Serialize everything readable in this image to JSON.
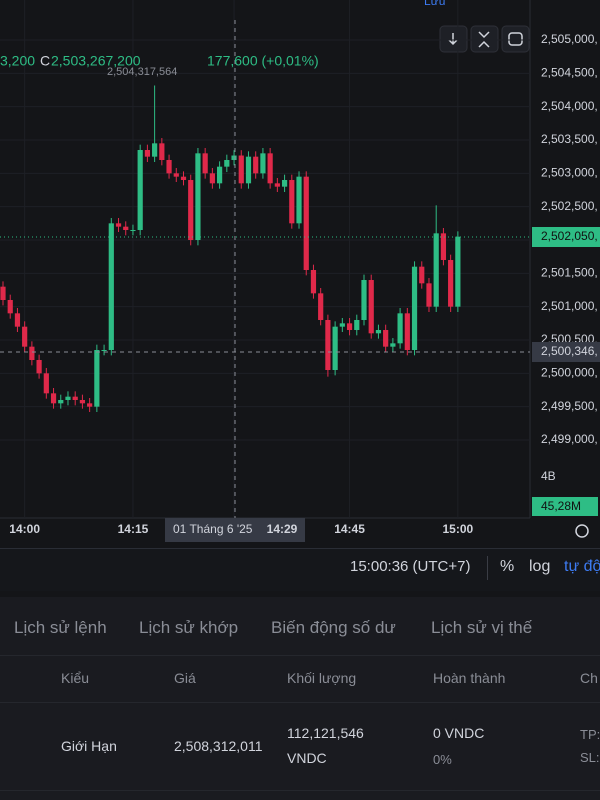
{
  "top_bar": {
    "save": "Lưu"
  },
  "chart_data": {
    "type": "candlestick",
    "categories": [
      null,
      null,
      null,
      "14:00",
      null,
      null,
      null,
      null,
      null,
      null,
      null,
      null,
      null,
      null,
      null,
      null,
      null,
      null,
      "14:15",
      null,
      null,
      null,
      null,
      null,
      null,
      null,
      null,
      null,
      null,
      null,
      null,
      null,
      "14:29",
      null,
      null,
      null,
      null,
      null,
      null,
      null,
      null,
      null,
      null,
      null,
      null,
      null,
      null,
      null,
      "14:45",
      null,
      null,
      null,
      null,
      null,
      null,
      null,
      null,
      null,
      null,
      null,
      null,
      null,
      null,
      "15:00"
    ],
    "open": [
      2501300000,
      2501100000,
      2500900000,
      2500700000,
      2500400000,
      2500200000,
      2500000000,
      2499700000,
      2499550000,
      2499600000,
      2499650000,
      2499600000,
      2499550000,
      2499500000,
      2500350000,
      2500350000,
      2502250000,
      2502200000,
      2502150000,
      2502150000,
      2503350000,
      2503250000,
      2503450000,
      2503200000,
      2503000000,
      2502950000,
      2502900000,
      2502000000,
      2503300000,
      2503000000,
      2502850000,
      2503100000,
      2503200000,
      2503267200,
      2502850000,
      2503250000,
      2503000000,
      2503300000,
      2502850000,
      2502800000,
      2502900000,
      2502250000,
      2502950000,
      2501550000,
      2501200000,
      2500800000,
      2500050000,
      2500700000,
      2500750000,
      2500650000,
      2500800000,
      2501400000,
      2500600000,
      2500650000,
      2500400000,
      2500450000,
      2500900000,
      2500350000,
      2501600000,
      2501350000,
      2501000000,
      2502100000,
      2501700000,
      2501000000
    ],
    "high": [
      2501380000,
      2501180000,
      2500980000,
      2500780000,
      2500480000,
      2500280000,
      2500080000,
      2499780000,
      2499680000,
      2499730000,
      2499730000,
      2499680000,
      2499630000,
      2500430000,
      2500430000,
      2502330000,
      2502330000,
      2502280000,
      2502230000,
      2503430000,
      2503430000,
      2504317564,
      2503530000,
      2503280000,
      2503080000,
      2503030000,
      2502980000,
      2503380000,
      2503380000,
      2503080000,
      2503180000,
      2503280000,
      2503347200,
      2503347200,
      2503330000,
      2503330000,
      2503380000,
      2503380000,
      2502930000,
      2502980000,
      2502980000,
      2503030000,
      2503030000,
      2501630000,
      2501280000,
      2500880000,
      2500780000,
      2500830000,
      2500830000,
      2500880000,
      2501480000,
      2501480000,
      2500730000,
      2500730000,
      2500530000,
      2500980000,
      2500980000,
      2501680000,
      2501680000,
      2501430000,
      2502520000,
      2502180000,
      2501780000,
      2502130000
    ],
    "low": [
      2501020000,
      2500820000,
      2500620000,
      2500320000,
      2500120000,
      2499920000,
      2499620000,
      2499470000,
      2499470000,
      2499520000,
      2499520000,
      2499470000,
      2499420000,
      2499420000,
      2500270000,
      2500270000,
      2502120000,
      2502070000,
      2502070000,
      2502070000,
      2503170000,
      2503170000,
      2503120000,
      2502920000,
      2502870000,
      2502820000,
      2501920000,
      2501920000,
      2502920000,
      2502770000,
      2502770000,
      2503020000,
      2503120000,
      2502770000,
      2502770000,
      2502920000,
      2502920000,
      2502770000,
      2502720000,
      2502720000,
      2502170000,
      2502170000,
      2501470000,
      2501120000,
      2500720000,
      2499950000,
      2499970000,
      2500620000,
      2500570000,
      2500570000,
      2500720000,
      2500520000,
      2500520000,
      2500320000,
      2500320000,
      2500370000,
      2500270000,
      2500270000,
      2501270000,
      2500920000,
      2500920000,
      2501620000,
      2500920000,
      2500920000
    ],
    "close": [
      2501100000,
      2500900000,
      2500700000,
      2500400000,
      2500200000,
      2500000000,
      2499700000,
      2499550000,
      2499600000,
      2499650000,
      2499600000,
      2499550000,
      2499500000,
      2500350000,
      2500350000,
      2502250000,
      2502200000,
      2502150000,
      2502150000,
      2503350000,
      2503250000,
      2503450000,
      2503200000,
      2503000000,
      2502950000,
      2502900000,
      2502000000,
      2503300000,
      2503000000,
      2502850000,
      2503100000,
      2503200000,
      2503267200,
      2502850000,
      2503250000,
      2503000000,
      2503300000,
      2502850000,
      2502800000,
      2502900000,
      2502250000,
      2502950000,
      2501550000,
      2501200000,
      2500800000,
      2500050000,
      2500700000,
      2500750000,
      2500650000,
      2500800000,
      2501400000,
      2500600000,
      2500650000,
      2500400000,
      2500450000,
      2500900000,
      2500350000,
      2501600000,
      2501350000,
      2501000000,
      2502100000,
      2501700000,
      2501000000,
      2502050000
    ],
    "up_color": "#2ebd85",
    "down_color": "#e0294a",
    "ylim": [
      2498700000,
      2505600000
    ],
    "yticks": [
      {
        "value": 2499000000,
        "label": "2,499,000,"
      },
      {
        "value": 2499500000,
        "label": "2,499,500,"
      },
      {
        "value": 2500000000,
        "label": "2,500,000,"
      },
      {
        "value": 2500500000,
        "label": "2,500,500,"
      },
      {
        "value": 2501000000,
        "label": "2,501,000,"
      },
      {
        "value": 2501500000,
        "label": "2,501,500,"
      },
      {
        "value": 2502000000,
        "label": "2,502,000,"
      },
      {
        "value": 2502500000,
        "label": "2,502,500,"
      },
      {
        "value": 2503000000,
        "label": "2,503,000,"
      },
      {
        "value": 2503500000,
        "label": "2,503,500,"
      },
      {
        "value": 2504000000,
        "label": "2,504,000,"
      },
      {
        "value": 2504500000,
        "label": "2,504,500,"
      },
      {
        "value": 2505000000,
        "label": "2,505,000,"
      }
    ],
    "grid": true
  },
  "chart_overlay": {
    "legend_prev": "3,200",
    "close_prefix": "C",
    "close_value": "2,503,267,200",
    "change": "177,600 (+0,01%)",
    "high_label": "2,504,317,564",
    "crosshair_price": "2,500,346,",
    "last_price": "2,502,050,",
    "volume_axis": "4B",
    "volume_last": "45,28M",
    "crosshair_date": "01 Tháng 6 '25"
  },
  "time_bar": {
    "clock": "15:00:36 (UTC+7)",
    "percent": "%",
    "log": "log",
    "auto": "tự độ"
  },
  "tabs": [
    "Lịch sử lệnh",
    "Lịch sử khớp",
    "Biến động số dư",
    "Lịch sử vị thế"
  ],
  "table": {
    "headers": [
      "Kiểu",
      "Giá",
      "Khối lượng",
      "Hoàn thành",
      "Ch"
    ],
    "rows": [
      {
        "type": "Giới Hạn",
        "price": "2,508,312,011",
        "volume": "112,121,546",
        "volume_unit": "VNDC",
        "filled": "0 VNDC",
        "filled_pct": "0%",
        "tp": "TP:",
        "sl": "SL:"
      }
    ]
  }
}
